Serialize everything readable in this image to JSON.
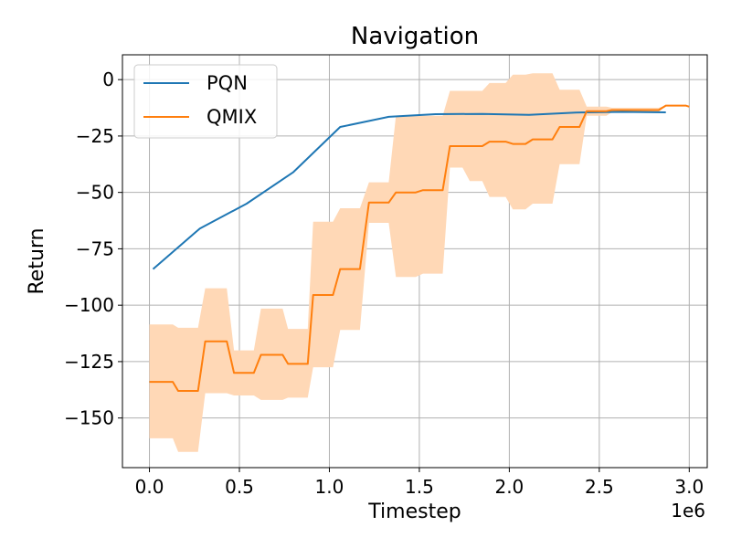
{
  "chart_data": {
    "type": "line",
    "title": "Navigation",
    "xlabel": "Timestep",
    "ylabel": "Return",
    "x_scale_label": "1e6",
    "xlim": [
      -0.15,
      3.1
    ],
    "ylim": [
      -172,
      11
    ],
    "xticks": [
      0.0,
      0.5,
      1.0,
      1.5,
      2.0,
      2.5,
      3.0
    ],
    "xtick_labels": [
      "0.0",
      "0.5",
      "1.0",
      "1.5",
      "2.0",
      "2.5",
      "3.0"
    ],
    "yticks": [
      0,
      -25,
      -50,
      -75,
      -100,
      -125,
      -150
    ],
    "ytick_labels": [
      "0",
      "−25",
      "−50",
      "−75",
      "−100",
      "−125",
      "−150"
    ],
    "grid": true,
    "legend": {
      "position": "top-left"
    },
    "series": [
      {
        "name": "PQN",
        "color": "#1f77b4",
        "x": [
          0.02,
          0.28,
          0.54,
          0.8,
          1.06,
          1.33,
          1.59,
          1.85,
          2.11,
          2.37,
          2.63,
          2.87
        ],
        "y": [
          -84,
          -66,
          -55,
          -41,
          -21,
          -16.5,
          -15.3,
          -15.2,
          -15.6,
          -14.6,
          -14.3,
          -14.5
        ]
      },
      {
        "name": "QMIX",
        "color": "#ff7f0e",
        "band_color": "#ffd8b6",
        "x": [
          0.0,
          0.13,
          0.16,
          0.27,
          0.31,
          0.43,
          0.47,
          0.58,
          0.62,
          0.74,
          0.77,
          0.88,
          0.91,
          1.02,
          1.06,
          1.17,
          1.22,
          1.33,
          1.37,
          1.48,
          1.52,
          1.63,
          1.67,
          1.74,
          1.78,
          1.85,
          1.89,
          1.98,
          2.02,
          2.09,
          2.13,
          2.24,
          2.28,
          2.39,
          2.43,
          2.54,
          2.57,
          2.68,
          2.72,
          2.83,
          2.87,
          2.98,
          3.0
        ],
        "y": [
          -134,
          -134,
          -138,
          -138,
          -116,
          -116,
          -130,
          -130,
          -122,
          -122,
          -126,
          -126,
          -95.5,
          -95.5,
          -84,
          -84,
          -54.5,
          -54.5,
          -50,
          -50,
          -49,
          -49,
          -29.5,
          -29.5,
          -29.5,
          -29.5,
          -27.5,
          -27.5,
          -28.5,
          -28.5,
          -26.5,
          -26.5,
          -21,
          -21,
          -14,
          -14,
          -13.5,
          -13.5,
          -13.5,
          -13.5,
          -11.5,
          -11.5,
          -12
        ],
        "upper": [
          -108.5,
          -108.5,
          -110,
          -110,
          -92.5,
          -92.5,
          -120,
          -120,
          -101.5,
          -101.5,
          -110.5,
          -110.5,
          -63,
          -63,
          -57,
          -57,
          -45.5,
          -45.5,
          -16,
          -16,
          -16,
          -16,
          -5,
          -5,
          -5,
          -5,
          -1.5,
          -1.5,
          2.2,
          2.2,
          2.8,
          2.8,
          -4.5,
          -4.5,
          -12,
          -12,
          -12.5,
          -12.5,
          -12.5,
          -12.5,
          -11.5,
          -11.5,
          -12
        ],
        "lower": [
          -159,
          -159,
          -165,
          -165,
          -139,
          -139,
          -140,
          -140,
          -142,
          -142,
          -141,
          -141,
          -127.5,
          -127.5,
          -111,
          -111,
          -63.5,
          -63.5,
          -87.5,
          -87.5,
          -86,
          -86,
          -39,
          -39,
          -45,
          -45,
          -52,
          -52,
          -57.5,
          -57.5,
          -55,
          -55,
          -37.5,
          -37.5,
          -16,
          -16,
          -14.5,
          -14.5,
          -14.5,
          -14.5,
          -11.5,
          -11.5,
          -12
        ]
      }
    ]
  }
}
